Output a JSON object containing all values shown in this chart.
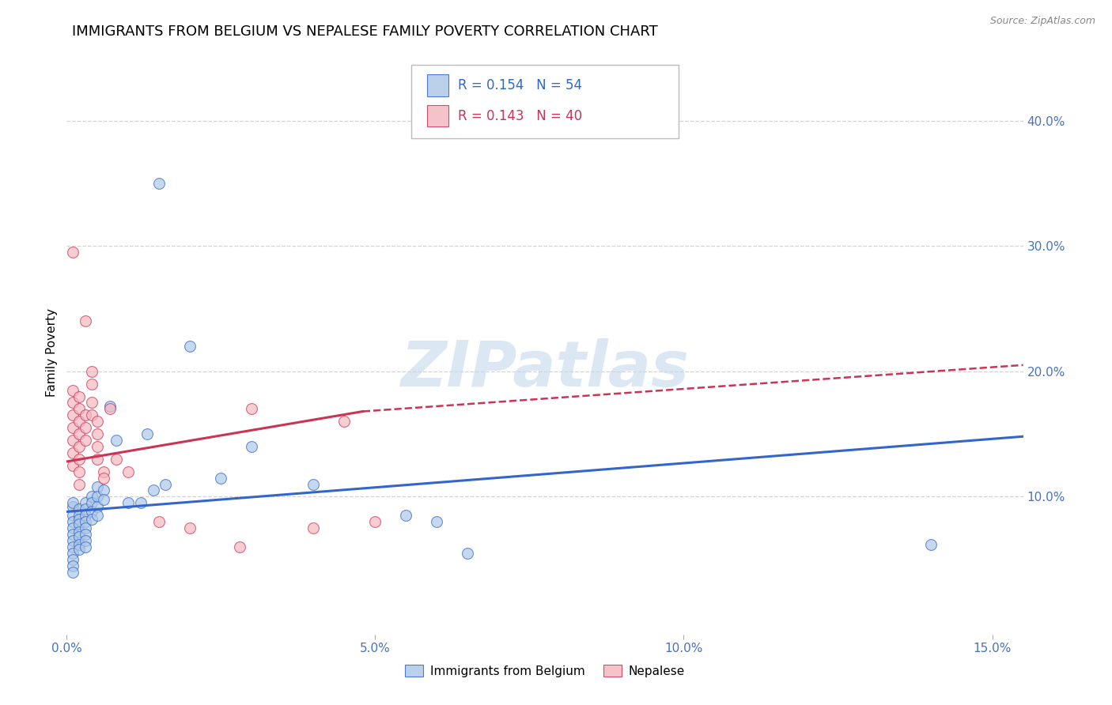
{
  "title": "IMMIGRANTS FROM BELGIUM VS NEPALESE FAMILY POVERTY CORRELATION CHART",
  "source": "Source: ZipAtlas.com",
  "xlabel_ticks": [
    "0.0%",
    "5.0%",
    "10.0%",
    "15.0%"
  ],
  "xlabel_values": [
    0.0,
    0.05,
    0.1,
    0.15
  ],
  "ylabel": "Family Poverty",
  "ylabel_right_ticks": [
    "10.0%",
    "20.0%",
    "30.0%",
    "40.0%"
  ],
  "ylabel_right_values": [
    0.1,
    0.2,
    0.3,
    0.4
  ],
  "xlim": [
    0.0,
    0.155
  ],
  "ylim": [
    -0.01,
    0.44
  ],
  "legend1_label": "Immigrants from Belgium",
  "legend2_label": "Nepalese",
  "R1": "0.154",
  "N1": "54",
  "R2": "0.143",
  "N2": "40",
  "blue_color": "#aec8e8",
  "pink_color": "#f4b8c0",
  "blue_line_color": "#3366cc",
  "pink_line_color": "#cc3355",
  "blue_trend": [
    0.0,
    0.155,
    0.088,
    0.148
  ],
  "pink_trend_solid": [
    0.0,
    0.048,
    0.128,
    0.168
  ],
  "pink_trend_dashed": [
    0.048,
    0.155,
    0.168,
    0.205
  ],
  "blue_scatter": [
    [
      0.001,
      0.092
    ],
    [
      0.001,
      0.085
    ],
    [
      0.001,
      0.08
    ],
    [
      0.001,
      0.075
    ],
    [
      0.001,
      0.07
    ],
    [
      0.001,
      0.065
    ],
    [
      0.001,
      0.06
    ],
    [
      0.001,
      0.055
    ],
    [
      0.001,
      0.05
    ],
    [
      0.001,
      0.045
    ],
    [
      0.001,
      0.04
    ],
    [
      0.001,
      0.095
    ],
    [
      0.002,
      0.09
    ],
    [
      0.002,
      0.085
    ],
    [
      0.002,
      0.082
    ],
    [
      0.002,
      0.078
    ],
    [
      0.002,
      0.072
    ],
    [
      0.002,
      0.068
    ],
    [
      0.002,
      0.062
    ],
    [
      0.002,
      0.058
    ],
    [
      0.003,
      0.095
    ],
    [
      0.003,
      0.09
    ],
    [
      0.003,
      0.085
    ],
    [
      0.003,
      0.08
    ],
    [
      0.003,
      0.075
    ],
    [
      0.003,
      0.07
    ],
    [
      0.003,
      0.065
    ],
    [
      0.003,
      0.06
    ],
    [
      0.004,
      0.1
    ],
    [
      0.004,
      0.095
    ],
    [
      0.004,
      0.088
    ],
    [
      0.004,
      0.082
    ],
    [
      0.005,
      0.108
    ],
    [
      0.005,
      0.1
    ],
    [
      0.005,
      0.092
    ],
    [
      0.005,
      0.085
    ],
    [
      0.006,
      0.105
    ],
    [
      0.006,
      0.098
    ],
    [
      0.007,
      0.172
    ],
    [
      0.008,
      0.145
    ],
    [
      0.01,
      0.095
    ],
    [
      0.012,
      0.095
    ],
    [
      0.013,
      0.15
    ],
    [
      0.014,
      0.105
    ],
    [
      0.016,
      0.11
    ],
    [
      0.02,
      0.22
    ],
    [
      0.025,
      0.115
    ],
    [
      0.03,
      0.14
    ],
    [
      0.04,
      0.11
    ],
    [
      0.055,
      0.085
    ],
    [
      0.06,
      0.08
    ],
    [
      0.065,
      0.055
    ],
    [
      0.14,
      0.062
    ],
    [
      0.015,
      0.35
    ]
  ],
  "pink_scatter": [
    [
      0.001,
      0.295
    ],
    [
      0.001,
      0.185
    ],
    [
      0.001,
      0.175
    ],
    [
      0.001,
      0.165
    ],
    [
      0.001,
      0.155
    ],
    [
      0.001,
      0.145
    ],
    [
      0.001,
      0.135
    ],
    [
      0.001,
      0.125
    ],
    [
      0.002,
      0.18
    ],
    [
      0.002,
      0.17
    ],
    [
      0.002,
      0.16
    ],
    [
      0.002,
      0.15
    ],
    [
      0.002,
      0.14
    ],
    [
      0.002,
      0.13
    ],
    [
      0.002,
      0.12
    ],
    [
      0.002,
      0.11
    ],
    [
      0.003,
      0.24
    ],
    [
      0.003,
      0.165
    ],
    [
      0.003,
      0.155
    ],
    [
      0.003,
      0.145
    ],
    [
      0.004,
      0.2
    ],
    [
      0.004,
      0.19
    ],
    [
      0.004,
      0.175
    ],
    [
      0.004,
      0.165
    ],
    [
      0.005,
      0.16
    ],
    [
      0.005,
      0.15
    ],
    [
      0.005,
      0.14
    ],
    [
      0.005,
      0.13
    ],
    [
      0.006,
      0.12
    ],
    [
      0.006,
      0.115
    ],
    [
      0.007,
      0.17
    ],
    [
      0.008,
      0.13
    ],
    [
      0.01,
      0.12
    ],
    [
      0.015,
      0.08
    ],
    [
      0.02,
      0.075
    ],
    [
      0.028,
      0.06
    ],
    [
      0.03,
      0.17
    ],
    [
      0.045,
      0.16
    ],
    [
      0.05,
      0.08
    ],
    [
      0.04,
      0.075
    ]
  ],
  "watermark": "ZIPatlas",
  "grid_color": "#d3d3d3",
  "title_fontsize": 13,
  "axis_label_fontsize": 11,
  "tick_fontsize": 11,
  "right_tick_color": "#4472c4",
  "bottom_tick_color": "#4472c4"
}
